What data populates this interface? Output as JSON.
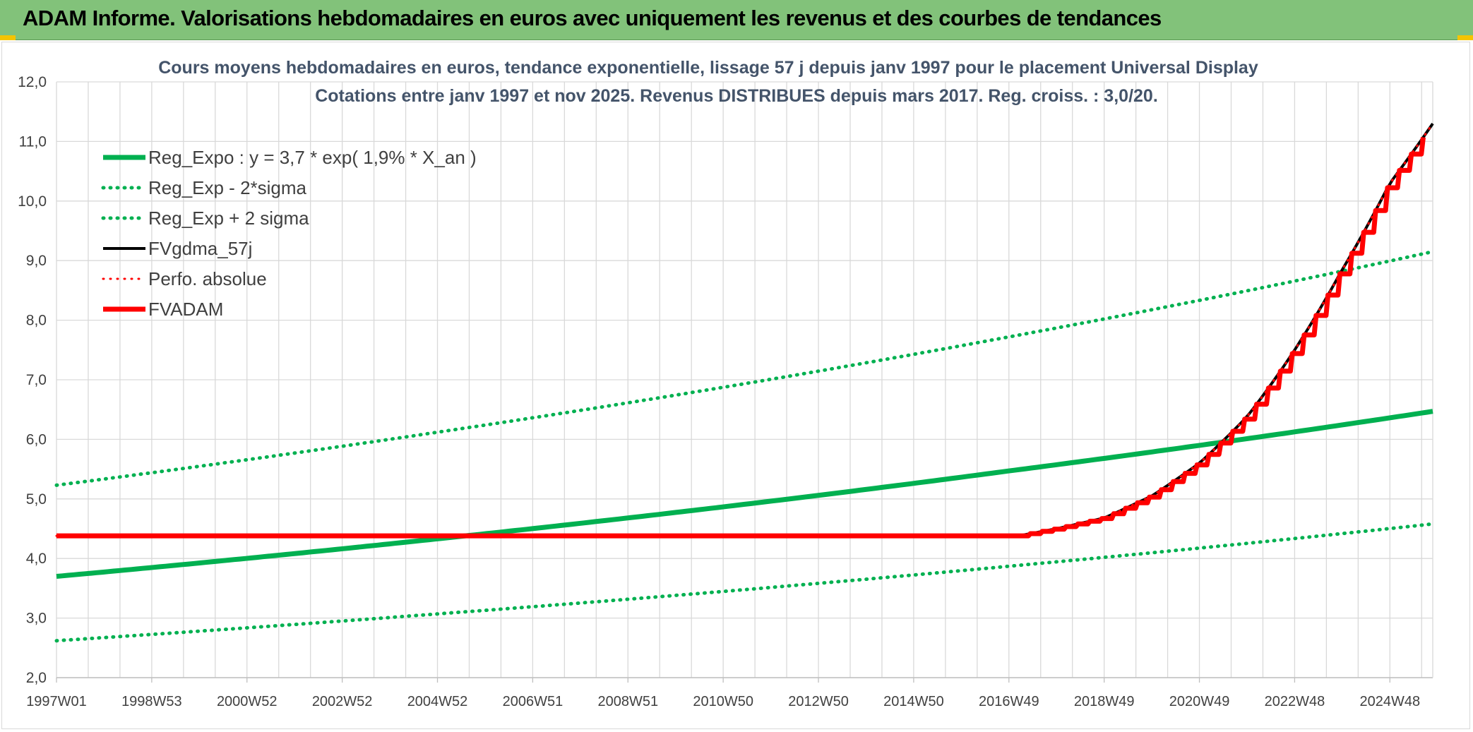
{
  "header": {
    "title": "ADAM Informe. Valorisations hebdomadaires en euros avec uniquement les revenus et des courbes de tendances",
    "bg_color": "#82c27a"
  },
  "chart_data": {
    "type": "line",
    "title_lines": [
      "Cours moyens hebdomadaires en euros, tendance exponentielle, lissage 57 j depuis janv 1997 pour le placement Universal Display",
      "Cotations entre janv 1997 et nov 2025. Revenus DISTRIBUES depuis mars 2017. Reg. croiss. : 3,0/20."
    ],
    "xlabel": "",
    "ylabel": "",
    "ylim": [
      2.0,
      12.0
    ],
    "xlim": [
      1997.0,
      2025.9
    ],
    "y_ticks": [
      "2,0",
      "3,0",
      "4,0",
      "5,0",
      "6,0",
      "7,0",
      "8,0",
      "9,0",
      "10,0",
      "11,0",
      "12,0"
    ],
    "x_tick_labels": [
      "1997W01",
      "1998W53",
      "2000W52",
      "2002W52",
      "2004W52",
      "2006W51",
      "2008W51",
      "2010W50",
      "2012W50",
      "2014W50",
      "2016W49",
      "2018W49",
      "2020W49",
      "2022W48",
      "2024W48"
    ],
    "x_tick_years": [
      1997.0,
      1999.0,
      2001.0,
      2003.0,
      2005.0,
      2007.0,
      2009.0,
      2011.0,
      2013.0,
      2015.0,
      2017.0,
      2019.0,
      2021.0,
      2023.0,
      2025.0
    ],
    "grid": true,
    "legend_position": "top-left",
    "series": [
      {
        "name": "Reg_Expo : y = 3,7 * exp( 1,9% *  X_an )",
        "color": "#00b050",
        "style": "solid",
        "width": 7,
        "points": [
          [
            1997.0,
            3.7
          ],
          [
            2005.0,
            4.33
          ],
          [
            2017.0,
            5.47
          ],
          [
            2025.9,
            6.47
          ]
        ]
      },
      {
        "name": "Reg_Exp - 2*sigma",
        "color": "#00b050",
        "style": "dotted",
        "width": 5,
        "points": [
          [
            1997.0,
            2.62
          ],
          [
            2005.0,
            3.07
          ],
          [
            2017.0,
            3.87
          ],
          [
            2025.9,
            4.58
          ]
        ]
      },
      {
        "name": "Reg_Exp + 2 sigma",
        "color": "#00b050",
        "style": "dotted",
        "width": 5,
        "points": [
          [
            1997.0,
            5.23
          ],
          [
            2005.0,
            6.12
          ],
          [
            2017.0,
            7.72
          ],
          [
            2025.9,
            9.15
          ]
        ]
      },
      {
        "name": "FVgdma_57j",
        "color": "#000000",
        "style": "solid",
        "width": 4,
        "points": [
          [
            1997.0,
            4.38
          ],
          [
            2017.2,
            4.38
          ],
          [
            2018.0,
            4.5
          ],
          [
            2019.0,
            4.68
          ],
          [
            2020.0,
            5.05
          ],
          [
            2021.0,
            5.6
          ],
          [
            2022.0,
            6.38
          ],
          [
            2023.0,
            7.5
          ],
          [
            2024.0,
            8.85
          ],
          [
            2025.0,
            10.3
          ],
          [
            2025.9,
            11.3
          ]
        ]
      },
      {
        "name": "Perfo. absolue",
        "color": "#ff0000",
        "style": "dotted",
        "width": 3,
        "points": [
          [
            1997.0,
            4.38
          ],
          [
            2017.2,
            4.38
          ],
          [
            2018.0,
            4.5
          ],
          [
            2019.0,
            4.68
          ],
          [
            2020.0,
            5.05
          ],
          [
            2021.0,
            5.6
          ],
          [
            2022.0,
            6.38
          ],
          [
            2023.0,
            7.5
          ],
          [
            2024.0,
            8.85
          ],
          [
            2025.0,
            10.3
          ],
          [
            2025.9,
            11.3
          ]
        ]
      },
      {
        "name": "FVADAM",
        "color": "#ff0000",
        "style": "step",
        "width": 7,
        "points": [
          [
            1997.0,
            4.38
          ],
          [
            2017.2,
            4.38
          ],
          [
            2018.0,
            4.5
          ],
          [
            2019.0,
            4.68
          ],
          [
            2020.0,
            5.05
          ],
          [
            2021.0,
            5.6
          ],
          [
            2022.0,
            6.38
          ],
          [
            2023.0,
            7.5
          ],
          [
            2024.0,
            8.85
          ],
          [
            2025.0,
            10.3
          ],
          [
            2025.9,
            11.3
          ]
        ]
      }
    ]
  }
}
